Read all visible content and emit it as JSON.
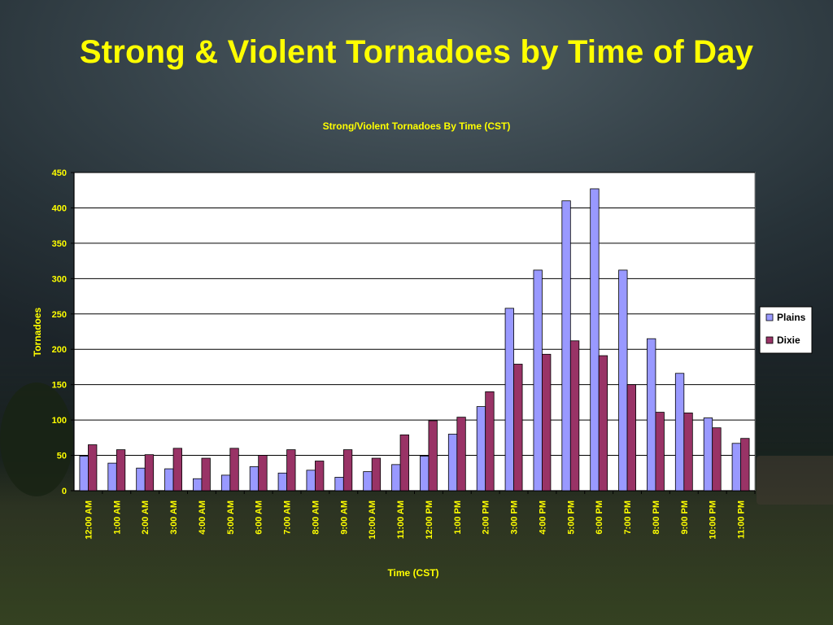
{
  "slide": {
    "title": "Strong & Violent Tornadoes by Time of Day"
  },
  "colors": {
    "title": "#ffff00",
    "chart_text": "#ffff00",
    "plains": "#9999ff",
    "dixie": "#993366",
    "plot_bg": "#ffffff",
    "gridline": "#000000"
  },
  "chart_data": {
    "type": "bar",
    "title": "Strong/Violent Tornadoes By Time (CST)",
    "xlabel": "Time (CST)",
    "ylabel": "Tornadoes",
    "ylim": [
      0,
      450
    ],
    "yticks": [
      0,
      50,
      100,
      150,
      200,
      250,
      300,
      350,
      400,
      450
    ],
    "grid": true,
    "legend_position": "right",
    "categories": [
      "12:00 AM",
      "1:00 AM",
      "2:00 AM",
      "3:00 AM",
      "4:00 AM",
      "5:00 AM",
      "6:00 AM",
      "7:00 AM",
      "8:00 AM",
      "9:00 AM",
      "10:00 AM",
      "11:00 AM",
      "12:00 PM",
      "1:00 PM",
      "2:00 PM",
      "3:00 PM",
      "4:00 PM",
      "5:00 PM",
      "6:00 PM",
      "7:00 PM",
      "8:00 PM",
      "9:00 PM",
      "10:00 PM",
      "11:00 PM"
    ],
    "series": [
      {
        "name": "Plains",
        "color": "#9999ff",
        "values": [
          49,
          39,
          32,
          31,
          17,
          22,
          34,
          25,
          29,
          19,
          27,
          37,
          49,
          80,
          119,
          258,
          312,
          410,
          427,
          312,
          215,
          166,
          103,
          67
        ]
      },
      {
        "name": "Dixie",
        "color": "#993366",
        "values": [
          65,
          58,
          51,
          60,
          46,
          60,
          50,
          58,
          42,
          58,
          46,
          79,
          99,
          104,
          140,
          179,
          193,
          212,
          191,
          150,
          111,
          110,
          89,
          74
        ]
      }
    ]
  }
}
